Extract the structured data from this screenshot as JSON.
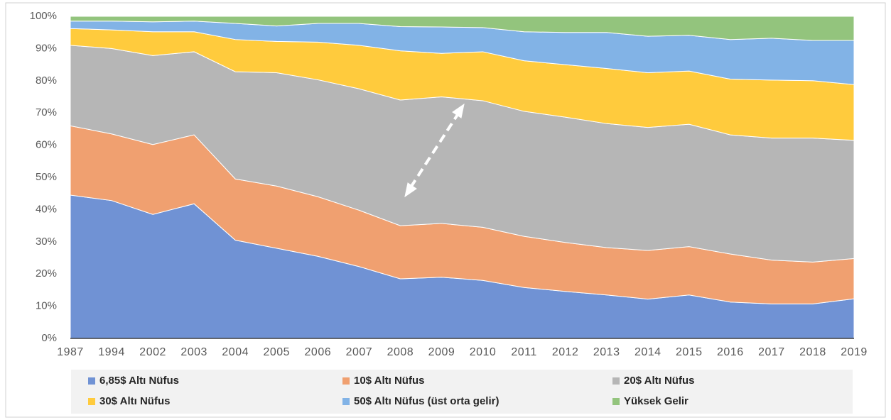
{
  "chart_data": {
    "type": "stacked_area",
    "categories": [
      "1987",
      "1994",
      "2002",
      "2003",
      "2004",
      "2005",
      "2006",
      "2007",
      "2008",
      "2009",
      "2010",
      "2011",
      "2012",
      "2013",
      "2014",
      "2015",
      "2016",
      "2017",
      "2018",
      "2019"
    ],
    "series": [
      {
        "name": "6,85$ Altı Nüfus",
        "color": "#7092d4",
        "values": [
          44.5,
          42.8,
          38.5,
          41.8,
          30.5,
          28,
          25.5,
          22.3,
          18.5,
          19,
          18,
          15.8,
          14.6,
          13.5,
          12.2,
          13.5,
          11.3,
          10.7,
          10.7,
          12.3
        ]
      },
      {
        "name": "10$ Altı Nüfus",
        "color": "#f0a070",
        "values": [
          21.5,
          20.7,
          21.7,
          21.4,
          19,
          19.3,
          18.5,
          17.5,
          16.5,
          16.7,
          16.5,
          15.9,
          15.2,
          14.7,
          15.1,
          15,
          14.9,
          13.6,
          13,
          12.5
        ]
      },
      {
        "name": "20$ Altı Nüfus",
        "color": "#b6b6b6",
        "values": [
          25,
          26.5,
          27.6,
          25.8,
          33.3,
          35.2,
          36.3,
          37.7,
          39,
          39.3,
          39.3,
          38.8,
          38.9,
          38.5,
          38.2,
          38,
          37,
          37.9,
          38.5,
          36.7
        ]
      },
      {
        "name": "30$ Altı Nüfus",
        "color": "#ffcb3d",
        "values": [
          5.2,
          5.8,
          7.4,
          6.2,
          10,
          9.7,
          11.7,
          13.5,
          15.3,
          13.5,
          15.2,
          15.7,
          16.3,
          17.1,
          17,
          16.5,
          17.3,
          18,
          17.8,
          17.3
        ]
      },
      {
        "name": "50$ Altı Nüfus (üst orta gelir)",
        "color": "#82b3e6",
        "values": [
          2.3,
          2.7,
          3.1,
          3.3,
          5,
          4.8,
          5.8,
          6.8,
          7.5,
          8.2,
          7.5,
          9,
          10,
          11.2,
          11.3,
          11.1,
          12.3,
          13,
          12.5,
          13.7
        ]
      },
      {
        "name": "Yüksek Gelir",
        "color": "#93c47d",
        "values": [
          1.5,
          1.5,
          1.7,
          1.5,
          2.2,
          3,
          2.2,
          2.2,
          3.2,
          3.3,
          3.5,
          4.8,
          5,
          5,
          6.2,
          5.9,
          7.2,
          6.8,
          7.5,
          7.5
        ]
      }
    ],
    "ylim": [
      0,
      100
    ],
    "yticks": [
      {
        "value": 0,
        "label": "0%"
      },
      {
        "value": 10,
        "label": "10%"
      },
      {
        "value": 20,
        "label": "20%"
      },
      {
        "value": 30,
        "label": "30%"
      },
      {
        "value": 40,
        "label": "40%"
      },
      {
        "value": 50,
        "label": "50%"
      },
      {
        "value": 60,
        "label": "60%"
      },
      {
        "value": 70,
        "label": "70%"
      },
      {
        "value": 80,
        "label": "80%"
      },
      {
        "value": 90,
        "label": "90%"
      },
      {
        "value": 100,
        "label": "100%"
      }
    ],
    "grid": true,
    "legend": "bottom"
  }
}
